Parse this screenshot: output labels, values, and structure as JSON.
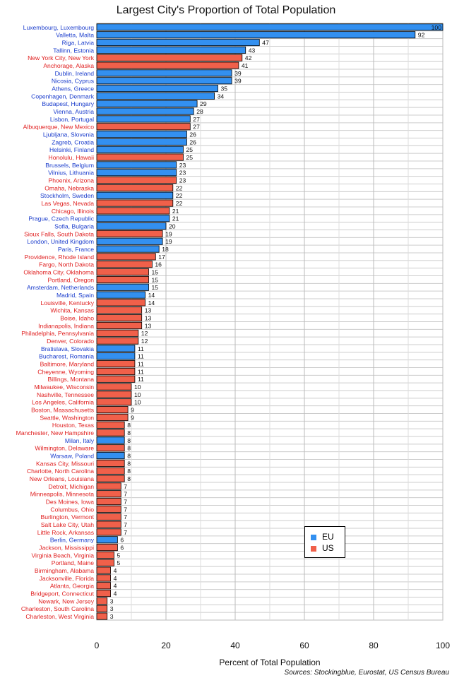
{
  "chart_data": {
    "type": "bar",
    "orientation": "horizontal",
    "title": "Largest City's Proportion of Total Population",
    "xlabel": "Percent of Total Population",
    "ylabel": "",
    "xlim": [
      0,
      100
    ],
    "xticks": [
      0,
      20,
      40,
      60,
      80,
      100
    ],
    "grid": true,
    "legend_position": "bottom-right",
    "source": "Sources: Stockingblue, Eurostat, US Census Bureau",
    "legend": [
      {
        "name": "EU",
        "color": "#3390f0"
      },
      {
        "name": "US",
        "color": "#f0604a"
      }
    ],
    "categories": [
      "Luxembourg, Luxembourg",
      "Valletta, Malta",
      "Riga, Latvia",
      "Tallinn, Estonia",
      "New York City, New York",
      "Anchorage, Alaska",
      "Dublin, Ireland",
      "Nicosia, Cyprus",
      "Athens, Greece",
      "Copenhagen, Denmark",
      "Budapest, Hungary",
      "Vienna, Austria",
      "Lisbon, Portugal",
      "Albuquerque, New Mexico",
      "Ljubljana, Slovenia",
      "Zagreb, Croatia",
      "Helsinki, Finland",
      "Honolulu, Hawaii",
      "Brussels, Belgium",
      "Vilnius, Lithuania",
      "Phoenix, Arizona",
      "Omaha, Nebraska",
      "Stockholm, Sweden",
      "Las Vegas, Nevada",
      "Chicago, Illinois",
      "Prague, Czech Republic",
      "Sofia, Bulgaria",
      "Sioux Falls, South Dakota",
      "London, United Kingdom",
      "Paris, France",
      "Providence, Rhode Island",
      "Fargo, North Dakota",
      "Oklahoma City, Oklahoma",
      "Portland, Oregon",
      "Amsterdam, Netherlands",
      "Madrid, Spain",
      "Louisville, Kentucky",
      "Wichita, Kansas",
      "Boise, Idaho",
      "Indianapolis, Indiana",
      "Philadelphia, Pennsylvania",
      "Denver, Colorado",
      "Bratislava, Slovakia",
      "Bucharest, Romania",
      "Baltimore, Maryland",
      "Cheyenne, Wyoming",
      "Billings, Montana",
      "Milwaukee, Wisconsin",
      "Nashville, Tennessee",
      "Los Angeles, California",
      "Boston, Massachusetts",
      "Seattle, Washington",
      "Houston, Texas",
      "Manchester, New Hampshire",
      "Milan, Italy",
      "Wilmington, Delaware",
      "Warsaw, Poland",
      "Kansas City, Missouri",
      "Charlotte, North Carolina",
      "New Orleans, Louisiana",
      "Detroit, Michigan",
      "Minneapolis, Minnesota",
      "Des Moines, Iowa",
      "Columbus, Ohio",
      "Burlington, Vermont",
      "Salt Lake City, Utah",
      "Little Rock, Arkansas",
      "Berlin, Germany",
      "Jackson, Mississippi",
      "Virginia Beach, Virginia",
      "Portland, Maine",
      "Birmingham, Alabama",
      "Jacksonville, Florida",
      "Atlanta, Georgia",
      "Bridgeport, Connecticut",
      "Newark, New Jersey",
      "Charleston, South Carolina",
      "Charleston, West Virginia"
    ],
    "values": [
      100,
      92,
      47,
      43,
      42,
      41,
      39,
      39,
      35,
      34,
      29,
      28,
      27,
      27,
      26,
      26,
      25,
      25,
      23,
      23,
      23,
      22,
      22,
      22,
      21,
      21,
      20,
      19,
      19,
      18,
      17,
      16,
      15,
      15,
      15,
      14,
      14,
      13,
      13,
      13,
      12,
      12,
      11,
      11,
      11,
      11,
      11,
      10,
      10,
      10,
      9,
      9,
      8,
      8,
      8,
      8,
      8,
      8,
      8,
      8,
      7,
      7,
      7,
      7,
      7,
      7,
      7,
      6,
      6,
      5,
      5,
      4,
      4,
      4,
      4,
      3,
      3,
      3
    ],
    "groups": [
      "EU",
      "EU",
      "EU",
      "EU",
      "US",
      "US",
      "EU",
      "EU",
      "EU",
      "EU",
      "EU",
      "EU",
      "EU",
      "US",
      "EU",
      "EU",
      "EU",
      "US",
      "EU",
      "EU",
      "US",
      "US",
      "EU",
      "US",
      "US",
      "EU",
      "EU",
      "US",
      "EU",
      "EU",
      "US",
      "US",
      "US",
      "US",
      "EU",
      "EU",
      "US",
      "US",
      "US",
      "US",
      "US",
      "US",
      "EU",
      "EU",
      "US",
      "US",
      "US",
      "US",
      "US",
      "US",
      "US",
      "US",
      "US",
      "US",
      "EU",
      "US",
      "EU",
      "US",
      "US",
      "US",
      "US",
      "US",
      "US",
      "US",
      "US",
      "US",
      "US",
      "EU",
      "US",
      "US",
      "US",
      "US",
      "US",
      "US",
      "US",
      "US",
      "US",
      "US"
    ]
  }
}
